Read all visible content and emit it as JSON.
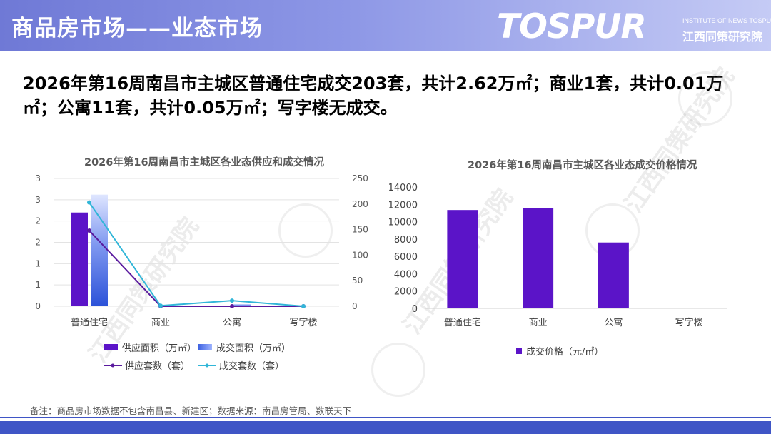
{
  "header": {
    "title": "商品房市场——业态市场",
    "logo_main": "TOSPUR",
    "logo_sub_en": "INSTITUTE OF NEWS TOSPUR",
    "logo_sub_cn": "江西同策研究院"
  },
  "headline": "2026年第16周南昌市主城区普通住宅成交203套，共计2.62万㎡；商业1套，共计0.01万㎡；公寓11套，共计0.05万㎡；写字楼无成交。",
  "watermark": "江西同策研究院",
  "note": "备注：商品房市场数据不包含南昌县、新建区；数据来源：南昌房管局、数联天下",
  "chart_data": [
    {
      "type": "bar+line",
      "title": "2026年第16周南昌市主城区各业态供应和成交情况",
      "categories": [
        "普通住宅",
        "商业",
        "公寓",
        "写字楼"
      ],
      "y_left": {
        "ylim": [
          0,
          3
        ],
        "tick_labels": [
          "0",
          "1",
          "1",
          "2",
          "2",
          "3",
          "3"
        ]
      },
      "y_right": {
        "ylim": [
          0,
          250
        ],
        "ticks": [
          "0",
          "50",
          "100",
          "150",
          "200",
          "250"
        ]
      },
      "series": [
        {
          "name": "供应面积（万㎡）",
          "kind": "bar",
          "axis": "left",
          "color": "#5b14c8",
          "values": [
            2.2,
            0,
            0,
            0
          ]
        },
        {
          "name": "成交面积（万㎡）",
          "kind": "bar",
          "axis": "left",
          "color": "#3a5fe0",
          "values": [
            2.62,
            0.01,
            0.05,
            0
          ]
        },
        {
          "name": "供应套数（套）",
          "kind": "line",
          "axis": "right",
          "color": "#5a1a9e",
          "values": [
            148,
            0,
            0,
            0
          ]
        },
        {
          "name": "成交套数（套）",
          "kind": "line",
          "axis": "right",
          "color": "#31b6d8",
          "values": [
            203,
            1,
            11,
            0
          ]
        }
      ],
      "legend_position": "bottom",
      "grid": true
    },
    {
      "type": "bar",
      "title": "2026年第16周南昌市主城区各业态成交价格情况",
      "categories": [
        "普通住宅",
        "商业",
        "公寓",
        "写字楼"
      ],
      "ylim": [
        0,
        14000
      ],
      "ticks": [
        "0",
        "2000",
        "4000",
        "6000",
        "8000",
        "10000",
        "12000",
        "14000"
      ],
      "series": [
        {
          "name": "成交价格（元/㎡）",
          "color": "#5b14c8",
          "values": [
            11350,
            11600,
            7600,
            0
          ]
        }
      ],
      "legend_position": "bottom",
      "grid": false
    }
  ]
}
